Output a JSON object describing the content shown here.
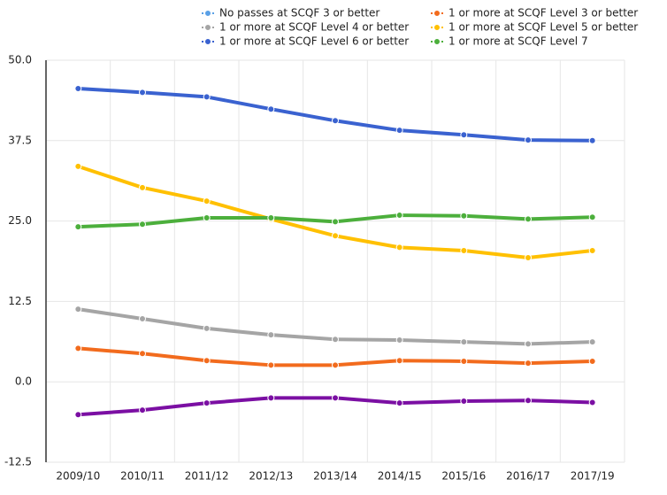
{
  "chart_data": {
    "type": "line",
    "categories": [
      "2009/10",
      "2010/11",
      "2011/12",
      "2012/13",
      "2013/14",
      "2014/15",
      "2015/16",
      "2016/17",
      "2017/19"
    ],
    "series": [
      {
        "name": "No passes at SCQF 3 or better",
        "color": "#5aa0e6",
        "values": [
          null,
          null,
          null,
          null,
          null,
          null,
          null,
          null,
          null
        ]
      },
      {
        "name": "1 or more at SCQF Level 3 or better",
        "color": "#f26b1d",
        "values": [
          5.2,
          4.4,
          3.3,
          2.6,
          2.6,
          3.3,
          3.2,
          2.9,
          3.2
        ]
      },
      {
        "name": "1 or more at SCQF Level 4 or better",
        "color": "#a5a5a5",
        "values": [
          11.3,
          9.8,
          8.3,
          7.3,
          6.6,
          6.5,
          6.2,
          5.9,
          6.2
        ]
      },
      {
        "name": "1 or more at SCQF Level 5 or better",
        "color": "#ffc000",
        "values": [
          33.5,
          30.2,
          28.1,
          25.3,
          22.7,
          20.9,
          20.4,
          19.3,
          20.4
        ]
      },
      {
        "name": "1 or more at SCQF Level 6 or better",
        "color": "#3a62d0",
        "values": [
          45.6,
          45.0,
          44.3,
          42.4,
          40.6,
          39.1,
          38.4,
          37.6,
          37.5
        ]
      },
      {
        "name": "1 or more at SCQF Level 7",
        "color": "#4caf3c",
        "values": [
          24.1,
          24.5,
          25.5,
          25.5,
          24.9,
          25.9,
          25.8,
          25.3,
          25.6
        ]
      },
      {
        "color": "#7b0fa3",
        "values": [
          -5.1,
          -4.4,
          -3.3,
          -2.5,
          -2.5,
          -3.3,
          -3.0,
          -2.9,
          -3.2
        ]
      }
    ],
    "ylim": [
      -12.5,
      50
    ],
    "yticks": [
      {
        "value": -12.5,
        "label": "-12.5"
      },
      {
        "value": 0,
        "label": "0.0"
      },
      {
        "value": 12.5,
        "label": "12.5"
      },
      {
        "value": 25,
        "label": "25.0"
      },
      {
        "value": 37.5,
        "label": "37.5"
      },
      {
        "value": 50,
        "label": "50.0"
      }
    ],
    "grid": true
  }
}
